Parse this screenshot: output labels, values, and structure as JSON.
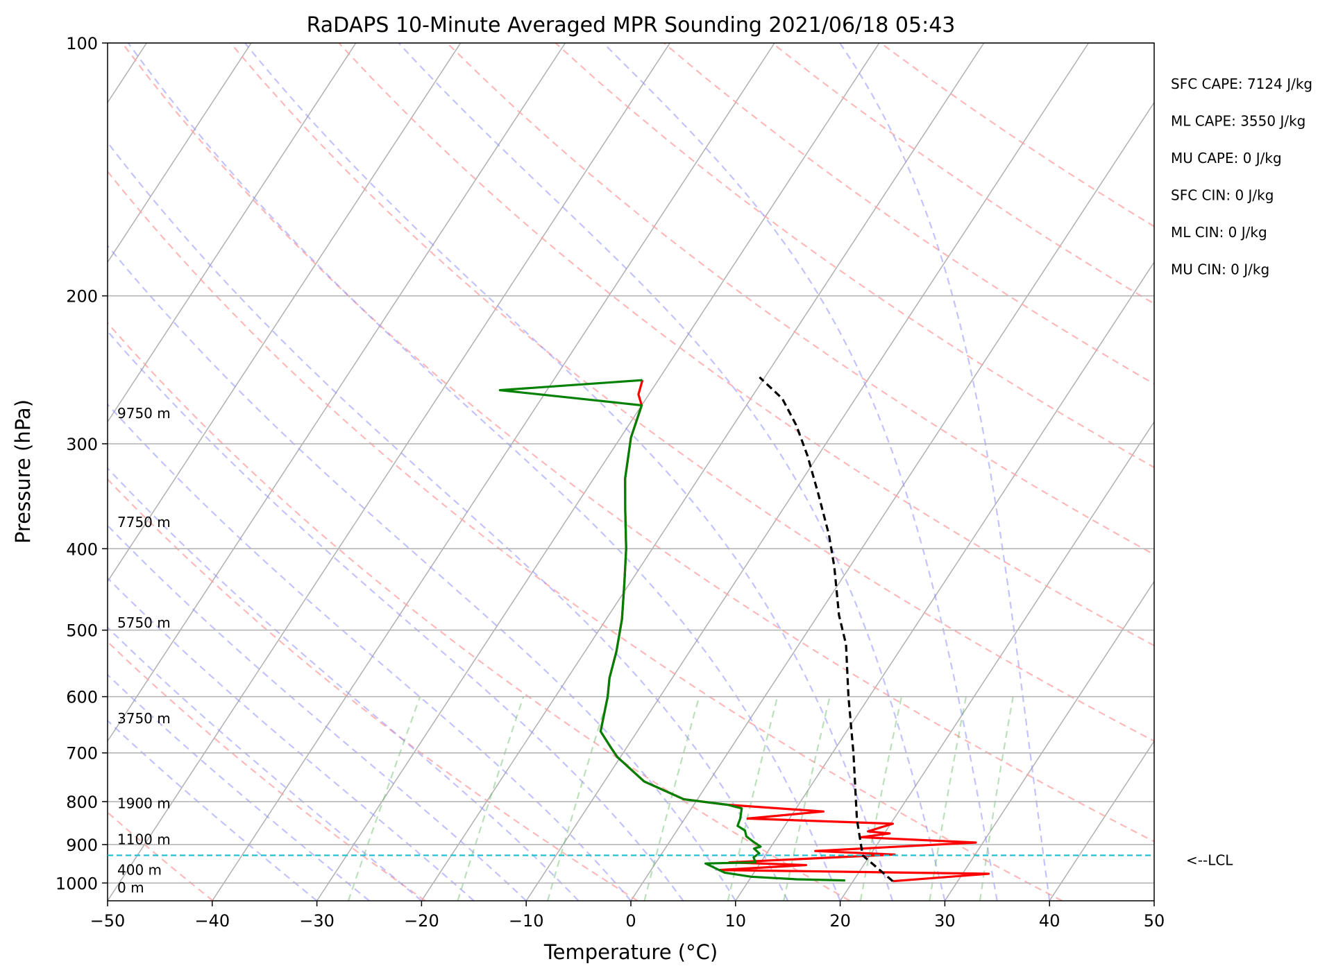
{
  "chart_data": {
    "type": "line",
    "title": "RaDAPS 10-Minute Averaged MPR Sounding 2021/06/18 05:43",
    "xlabel": "Temperature (°C)",
    "ylabel": "Pressure (hPa)",
    "xlim": [
      -50,
      50
    ],
    "ylim": [
      1050,
      100
    ],
    "y_scale": "log",
    "grid": true,
    "x_ticks": [
      -50,
      -40,
      -30,
      -20,
      -10,
      0,
      10,
      20,
      30,
      40,
      50
    ],
    "y_ticks": [
      100,
      200,
      300,
      400,
      500,
      600,
      700,
      800,
      900,
      1000
    ],
    "height_labels": [
      {
        "text": "9750 m",
        "p": 276
      },
      {
        "text": "7750 m",
        "p": 372
      },
      {
        "text": "5750 m",
        "p": 490
      },
      {
        "text": "3750 m",
        "p": 637
      },
      {
        "text": "1900 m",
        "p": 804
      },
      {
        "text": "1100 m",
        "p": 887
      },
      {
        "text": "400 m",
        "p": 965
      },
      {
        "text": "0 m",
        "p": 1013
      }
    ],
    "stats": [
      "SFC CAPE: 7124 J/kg",
      "ML CAPE: 3550 J/kg",
      "MU CAPE: 0 J/kg",
      "SFC CIN: 0 J/kg",
      "ML CIN: 0 J/kg",
      "MU CIN: 0 J/kg"
    ],
    "lcl": {
      "label": "<--LCL",
      "p": 927,
      "color": "#17becf"
    },
    "series": [
      {
        "color": "#ff0000",
        "points": [
          [
            23.8,
            995
          ],
          [
            32.5,
            975
          ],
          [
            6.5,
            965
          ],
          [
            14.5,
            952
          ],
          [
            7.0,
            945
          ],
          [
            22.3,
            925
          ],
          [
            14.5,
            916
          ],
          [
            29.3,
            895
          ],
          [
            18.0,
            882
          ],
          [
            20.5,
            873
          ],
          [
            18.3,
            868
          ],
          [
            20.2,
            850
          ],
          [
            6.0,
            838
          ],
          [
            12.8,
            822
          ],
          [
            3.2,
            807
          ],
          [
            -1.3,
            795
          ],
          [
            -6.2,
            757
          ],
          [
            -10.3,
            708
          ],
          [
            -11.5,
            690
          ],
          [
            -13.5,
            660
          ],
          [
            -15.0,
            600
          ],
          [
            -16.0,
            570
          ],
          [
            -17.0,
            530
          ],
          [
            -18.5,
            485
          ],
          [
            -20.5,
            440
          ],
          [
            -22.5,
            400
          ],
          [
            -25.0,
            360
          ],
          [
            -27.0,
            330
          ],
          [
            -29.0,
            295
          ],
          [
            -30.0,
            270
          ],
          [
            -31.0,
            262
          ],
          [
            -31.5,
            252
          ]
        ]
      },
      {
        "color": "#008000",
        "points": [
          [
            19.2,
            993
          ],
          [
            14.5,
            990
          ],
          [
            10.0,
            983
          ],
          [
            7.2,
            972
          ],
          [
            4.8,
            948
          ],
          [
            9.5,
            945
          ],
          [
            9.0,
            932
          ],
          [
            9.3,
            922
          ],
          [
            8.5,
            910
          ],
          [
            9.0,
            905
          ],
          [
            8.0,
            893
          ],
          [
            7.0,
            880
          ],
          [
            6.5,
            866
          ],
          [
            5.5,
            855
          ],
          [
            5.3,
            838
          ],
          [
            4.8,
            815
          ],
          [
            3.2,
            807
          ],
          [
            -1.3,
            795
          ],
          [
            -6.2,
            757
          ],
          [
            -10.3,
            708
          ],
          [
            -11.5,
            690
          ],
          [
            -13.5,
            660
          ],
          [
            -15.0,
            600
          ],
          [
            -16.0,
            570
          ],
          [
            -17.0,
            530
          ],
          [
            -18.5,
            485
          ],
          [
            -20.5,
            440
          ],
          [
            -22.5,
            400
          ],
          [
            -25.0,
            360
          ],
          [
            -27.0,
            330
          ],
          [
            -29.0,
            295
          ],
          [
            -30.0,
            270
          ],
          [
            -44.5,
            259
          ],
          [
            -31.5,
            252
          ]
        ]
      },
      {
        "color": "#000000",
        "dashed": true,
        "points": [
          [
            23.8,
            995
          ],
          [
            19.3,
            927
          ],
          [
            16.5,
            840
          ],
          [
            12.0,
            700
          ],
          [
            8.0,
            600
          ],
          [
            4.5,
            520
          ],
          [
            2.0,
            480
          ],
          [
            -1.5,
            420
          ],
          [
            -4.0,
            385
          ],
          [
            -7.5,
            345
          ],
          [
            -11.0,
            310
          ],
          [
            -14.0,
            285
          ],
          [
            -17.0,
            265
          ],
          [
            -20.5,
            250
          ]
        ]
      }
    ]
  }
}
